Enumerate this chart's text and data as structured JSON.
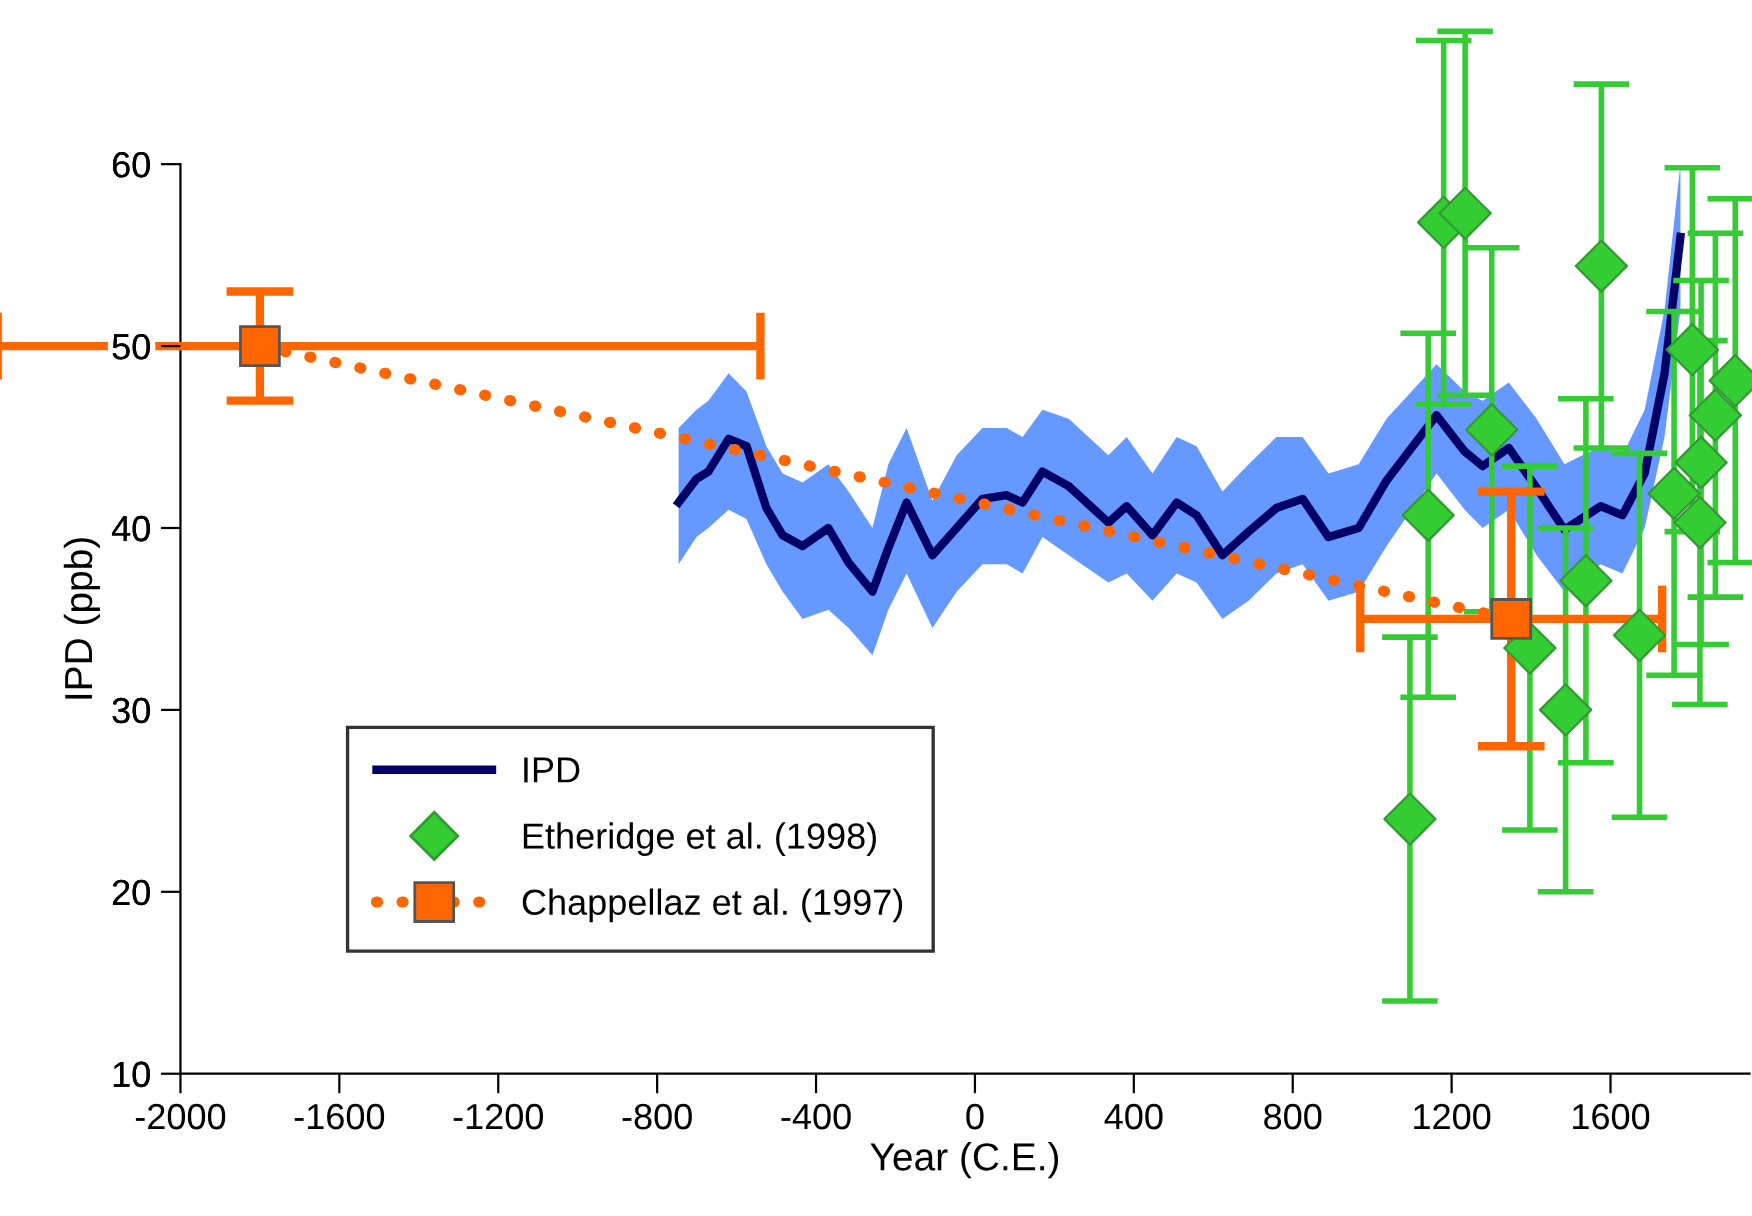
{
  "chart_data": {
    "type": "line",
    "xlabel": "Year (C.E.)",
    "ylabel": "IPD (ppb)",
    "xlim": [
      -2000,
      1950
    ],
    "ylim": [
      10,
      60
    ],
    "xticks": [
      -2000,
      -1600,
      -1200,
      -800,
      -400,
      0,
      400,
      800,
      1200,
      1600
    ],
    "yticks": [
      10,
      20,
      30,
      40,
      50,
      60
    ],
    "grid": false,
    "legend": "bottom left",
    "series": [
      {
        "name": "IPD",
        "color": "#000066",
        "marker": "none",
        "line_style": "solid",
        "x": [
          -746,
          -701,
          -671,
          -620,
          -575,
          -525,
          -484,
          -434,
          -369,
          -318,
          -258,
          -218,
          -172,
          -107,
          -46,
          19,
          80,
          120,
          170,
          236,
          336,
          382,
          447,
          508,
          558,
          623,
          689,
          759,
          825,
          890,
          966,
          1036,
          1162,
          1233,
          1278,
          1344,
          1414,
          1484,
          1575,
          1630,
          1686,
          1736,
          1776
        ],
        "values": [
          41.4,
          42.7,
          43.1,
          44.9,
          44.5,
          41.1,
          39.6,
          39.0,
          40.0,
          38.1,
          36.5,
          38.9,
          41.4,
          38.5,
          40.0,
          41.6,
          41.8,
          41.4,
          43.1,
          42.3,
          40.3,
          41.2,
          39.6,
          41.4,
          40.7,
          38.5,
          39.8,
          41.1,
          41.6,
          39.5,
          40.0,
          42.6,
          46.2,
          44.2,
          43.4,
          44.4,
          42.2,
          39.9,
          41.2,
          40.7,
          43.0,
          48.5,
          56.0
        ],
        "upper": [
          45.5,
          46.5,
          47.0,
          48.5,
          47.5,
          44.5,
          43.0,
          42.5,
          43.5,
          42.0,
          40.0,
          43.5,
          45.5,
          41.5,
          44.0,
          45.5,
          45.5,
          45.0,
          46.5,
          46.0,
          44.0,
          45.0,
          43.0,
          45.0,
          44.5,
          42.0,
          43.5,
          45.0,
          45.0,
          43.0,
          43.5,
          46.0,
          49.0,
          47.5,
          47.0,
          48.0,
          46.0,
          43.5,
          44.5,
          44.0,
          46.5,
          52.0,
          60.0
        ],
        "lower": [
          38.0,
          39.5,
          40.0,
          41.0,
          40.5,
          38.0,
          36.5,
          35.0,
          35.5,
          34.5,
          33.0,
          35.5,
          37.5,
          34.5,
          36.5,
          38.0,
          38.0,
          37.5,
          39.5,
          38.5,
          37.0,
          37.5,
          36.0,
          37.5,
          37.0,
          35.0,
          36.0,
          37.5,
          38.0,
          36.0,
          36.5,
          39.0,
          43.0,
          41.0,
          40.0,
          41.0,
          38.5,
          36.5,
          38.0,
          37.5,
          40.0,
          45.0,
          52.0
        ]
      },
      {
        "name": "Etheridge et al. (1998)",
        "type": "scatter",
        "color": "#33cc33",
        "marker": "diamond",
        "x": [
          1095,
          1141,
          1180,
          1234,
          1301,
          1397,
          1487,
          1538,
          1577,
          1673,
          1760,
          1806,
          1828,
          1825,
          1864,
          1914
        ],
        "values": [
          24.0,
          40.7,
          56.8,
          57.3,
          45.4,
          33.4,
          30.0,
          37.1,
          54.4,
          34.1,
          41.9,
          49.8,
          43.6,
          40.3,
          46.2,
          48.1
        ],
        "errors": [
          10,
          10,
          10,
          10,
          10,
          10,
          10,
          10,
          10,
          10,
          10,
          10,
          10,
          10,
          10,
          10
        ]
      },
      {
        "name": "Chappellaz et al. (1997)",
        "color": "#ff6600",
        "marker": "square",
        "line_style": "dotted",
        "x": [
          -1800,
          1350
        ],
        "values": [
          50,
          35
        ],
        "errors": [
          3,
          7
        ],
        "xerrors": [
          [
            -2460,
            -540
          ],
          [
            970,
            1730
          ]
        ]
      }
    ]
  }
}
